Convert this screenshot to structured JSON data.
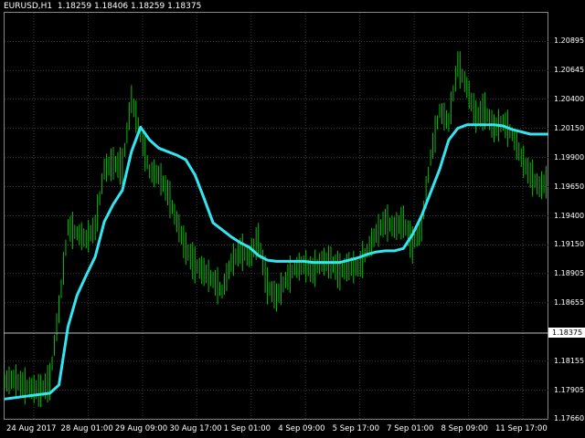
{
  "header": {
    "symbol": "EURUSD,H1",
    "ohlc": "1.18259 1.18406 1.18259 1.18375"
  },
  "current_price": "1.18375",
  "colors": {
    "background": "#000000",
    "grid": "#3a3a3a",
    "candles": "#00c000",
    "ma": "#33e5f0",
    "text": "#ffffff"
  },
  "chart_data": {
    "type": "line",
    "y_ticks": [
      "1.20895",
      "1.20645",
      "1.20400",
      "1.20150",
      "1.19900",
      "1.19650",
      "1.19400",
      "1.19150",
      "1.18905",
      "1.18655",
      "1.18375",
      "1.18155",
      "1.17905",
      "1.17660"
    ],
    "ylim": [
      1.1766,
      1.2114
    ],
    "x_ticks": [
      "24 Aug 2017",
      "28 Aug 01:00",
      "29 Aug 09:00",
      "30 Aug 17:00",
      "1 Sep 01:00",
      "4 Sep 09:00",
      "5 Sep 17:00",
      "7 Sep 01:00",
      "8 Sep 09:00",
      "11 Sep 17:00"
    ],
    "x_domain": [
      0,
      120
    ],
    "grid": true,
    "series": [
      {
        "kind": "moving-average",
        "x": [
          0,
          2,
          4,
          6,
          8,
          10,
          12,
          14,
          16,
          18,
          20,
          22,
          24,
          26,
          28,
          30,
          32,
          34,
          36,
          38,
          40,
          42,
          44,
          46,
          48,
          50,
          52,
          54,
          56,
          58,
          60,
          62,
          64,
          66,
          68,
          70,
          72,
          74,
          76,
          78,
          80,
          82,
          84,
          86,
          88,
          90,
          92,
          94,
          96,
          98,
          100,
          102,
          104,
          106,
          108,
          110,
          112,
          114,
          116,
          118,
          120
        ],
        "y": [
          1.1783,
          1.1784,
          1.1785,
          1.1786,
          1.1787,
          1.1788,
          1.1795,
          1.1845,
          1.1872,
          1.1889,
          1.1905,
          1.1935,
          1.195,
          1.1962,
          1.1995,
          1.2016,
          1.2005,
          1.1998,
          1.1995,
          1.1992,
          1.1988,
          1.1975,
          1.1955,
          1.1934,
          1.1928,
          1.1922,
          1.1917,
          1.1913,
          1.1906,
          1.1902,
          1.1901,
          1.1901,
          1.1901,
          1.1901,
          1.19,
          1.19,
          1.19,
          1.19,
          1.1902,
          1.1904,
          1.1907,
          1.1909,
          1.191,
          1.191,
          1.1912,
          1.1924,
          1.194,
          1.196,
          1.198,
          1.2005,
          1.2015,
          1.2018,
          1.2018,
          1.2018,
          1.2018,
          1.2017,
          1.2014,
          1.2012,
          1.201,
          1.201,
          1.201
        ]
      },
      {
        "kind": "price",
        "x": [
          0,
          2,
          4,
          6,
          8,
          10,
          12,
          14,
          16,
          18,
          20,
          22,
          24,
          26,
          28,
          30,
          32,
          34,
          36,
          38,
          40,
          42,
          44,
          46,
          48,
          50,
          52,
          54,
          56,
          58,
          60,
          62,
          64,
          66,
          68,
          70,
          72,
          74,
          76,
          78,
          80,
          82,
          84,
          86,
          88,
          90,
          92,
          94,
          96,
          98,
          100,
          102,
          104,
          106,
          108,
          110,
          112,
          114,
          116,
          118,
          120
        ],
        "y": [
          1.1798,
          1.18,
          1.1795,
          1.1792,
          1.179,
          1.1798,
          1.186,
          1.193,
          1.1925,
          1.192,
          1.193,
          1.198,
          1.1985,
          1.1982,
          1.204,
          1.201,
          1.1978,
          1.1975,
          1.196,
          1.1935,
          1.1912,
          1.1898,
          1.1892,
          1.1885,
          1.1875,
          1.19,
          1.191,
          1.1905,
          1.192,
          1.188,
          1.187,
          1.1885,
          1.1895,
          1.1898,
          1.1893,
          1.1901,
          1.19,
          1.1892,
          1.1897,
          1.1895,
          1.191,
          1.1925,
          1.1935,
          1.193,
          1.1935,
          1.1915,
          1.193,
          1.199,
          1.203,
          1.202,
          1.207,
          1.205,
          1.2025,
          1.203,
          1.2015,
          1.202,
          1.201,
          1.199,
          1.1975,
          1.1965,
          1.197
        ]
      }
    ]
  }
}
